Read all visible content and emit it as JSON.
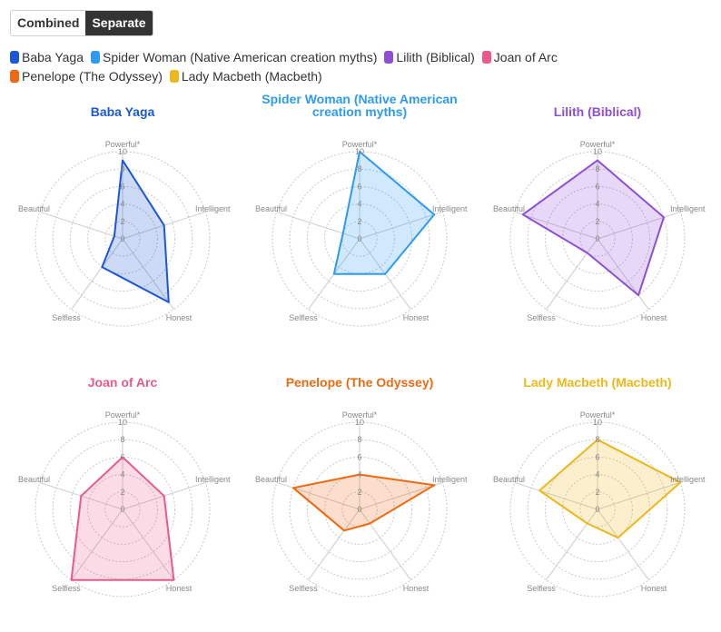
{
  "toggle": {
    "combined_label": "Combined",
    "separate_label": "Separate",
    "active": "Separate"
  },
  "legend": [
    {
      "name": "Baba Yaga",
      "color": "#1c57d8"
    },
    {
      "name": "Spider Woman (Native American creation myths)",
      "color": "#2d9bf0"
    },
    {
      "name": "Lilith (Biblical)",
      "color": "#8e4fd6"
    },
    {
      "name": "Joan of Arc",
      "color": "#e95a8b"
    },
    {
      "name": "Penelope (The Odyssey)",
      "color": "#ee6a12"
    },
    {
      "name": "Lady Macbeth (Macbeth)",
      "color": "#eeb71c"
    }
  ],
  "chart_data": {
    "type": "radar",
    "axes": [
      "Powerful*",
      "Intelligent",
      "Honest",
      "Selfless",
      "Beautiful"
    ],
    "range": [
      0,
      10
    ],
    "ticks": [
      0,
      2,
      4,
      6,
      8,
      10
    ],
    "series": [
      {
        "name": "Baba Yaga",
        "title": "Baba Yaga",
        "color": "#1c57d8",
        "values": [
          9,
          5,
          9,
          4,
          1
        ]
      },
      {
        "name": "Spider Woman (Native American creation myths)",
        "title": "Spider Woman (Native American creation myths)",
        "color": "#2d9bf0",
        "values": [
          10,
          9,
          5,
          5,
          2
        ]
      },
      {
        "name": "Lilith (Biblical)",
        "title": "Lilith (Biblical)",
        "color": "#8e4fd6",
        "values": [
          9,
          8,
          8,
          2,
          9
        ]
      },
      {
        "name": "Joan of Arc",
        "title": "Joan of Arc",
        "color": "#e95a8b",
        "values": [
          6,
          5,
          10,
          10,
          5
        ]
      },
      {
        "name": "Penelope (The Odyssey)",
        "title": "Penelope (The Odyssey)",
        "color": "#ee6a12",
        "values": [
          4,
          9,
          2,
          3,
          8
        ]
      },
      {
        "name": "Lady Macbeth (Macbeth)",
        "title": "Lady Macbeth (Macbeth)",
        "color": "#eeb71c",
        "values": [
          8,
          10,
          4,
          2,
          7
        ]
      }
    ]
  }
}
